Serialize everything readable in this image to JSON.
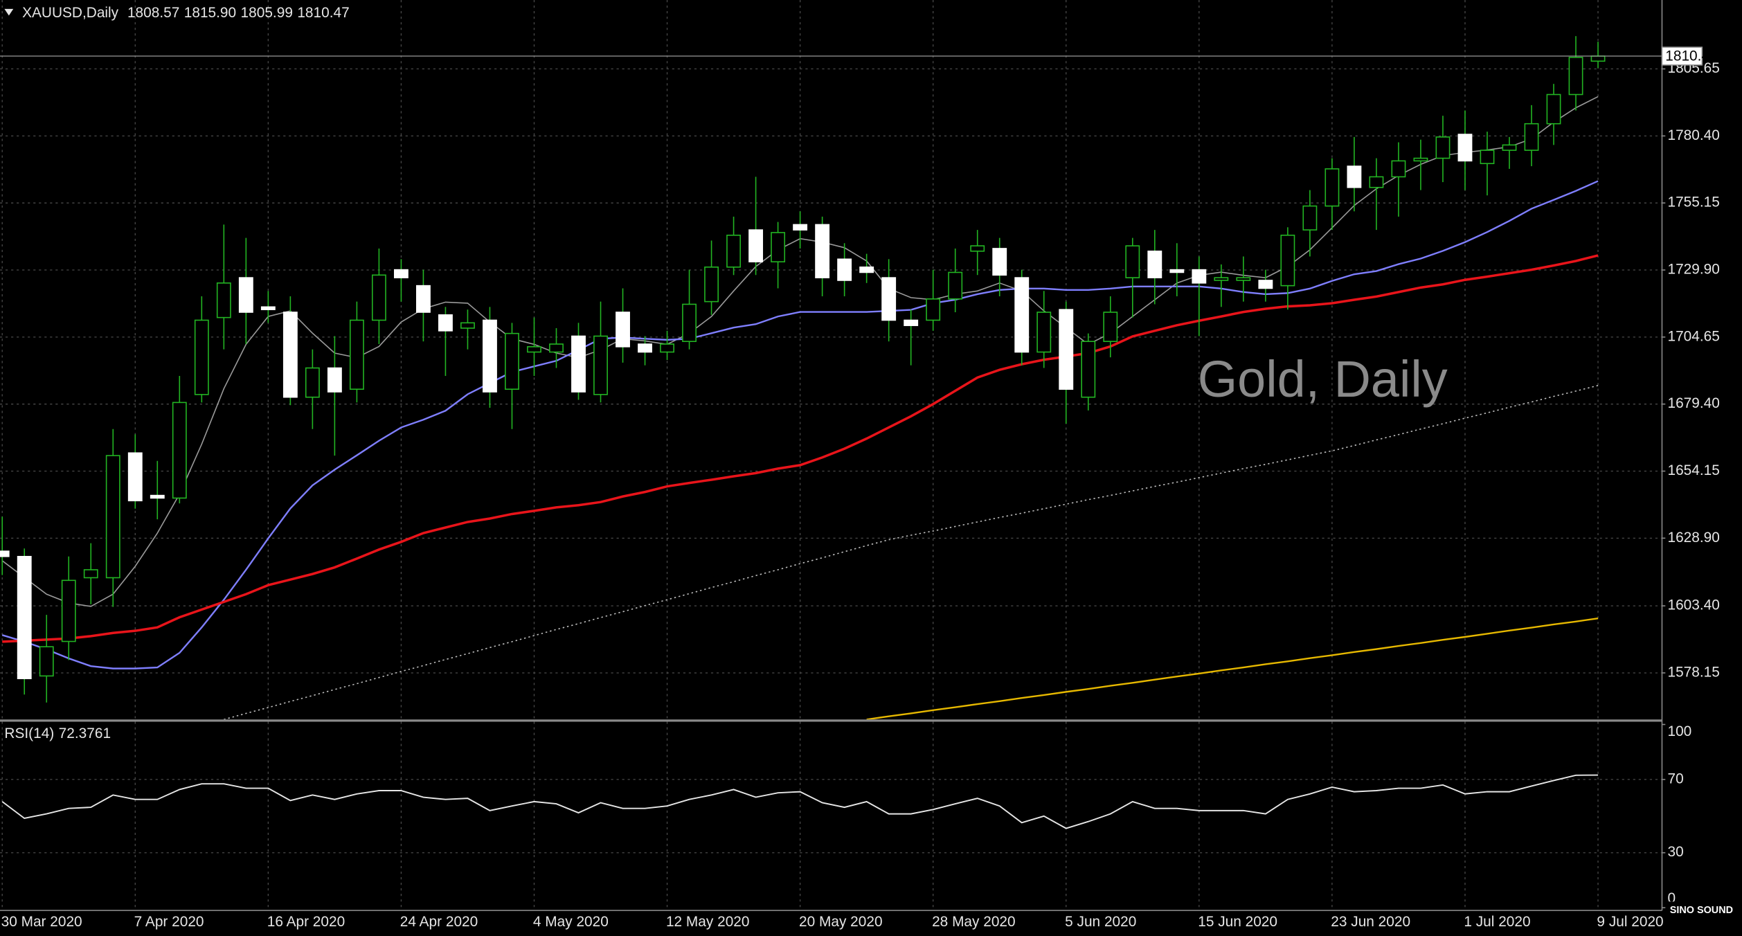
{
  "chart_data": [
    {
      "type": "candlestick",
      "title": "XAUUSD,Daily",
      "watermark": "Gold, Daily",
      "high_label": "1815.90",
      "logo": "SINO SOUND",
      "categories": [
        "30 Mar 2020",
        null,
        null,
        null,
        null,
        null,
        "7 Apr 2020",
        null,
        null,
        null,
        null,
        null,
        "16 Apr 2020",
        null,
        null,
        null,
        null,
        null,
        "24 Apr 2020",
        null,
        null,
        null,
        null,
        null,
        "4 May 2020",
        null,
        null,
        null,
        null,
        null,
        "12 May 2020",
        null,
        null,
        null,
        null,
        null,
        "20 May 2020",
        null,
        null,
        null,
        null,
        null,
        "28 May 2020",
        null,
        null,
        null,
        null,
        null,
        "5 Jun 2020",
        null,
        null,
        null,
        null,
        null,
        "15 Jun 2020",
        null,
        null,
        null,
        null,
        null,
        "23 Jun 2020",
        null,
        null,
        null,
        null,
        null,
        "1 Jul 2020",
        null,
        null,
        null,
        null,
        null,
        "9 Jul 2020"
      ],
      "open": [
        1624,
        1622,
        1577,
        1590,
        1614,
        1614,
        1661,
        1645,
        1644,
        1683,
        1712,
        1727,
        1716,
        1714,
        1682,
        1693,
        1685,
        1711,
        1730,
        1724,
        1713,
        1708,
        1711,
        1685,
        1699,
        1699,
        1705,
        1683,
        1714,
        1702,
        1699,
        1703,
        1718,
        1731,
        1745,
        1733,
        1747,
        1747,
        1734,
        1731,
        1727,
        1711,
        1711,
        1719,
        1737,
        1738,
        1727,
        1699,
        1715,
        1682,
        1703,
        1727,
        1737,
        1730,
        1730,
        1726,
        1726,
        1726,
        1724,
        1745,
        1754,
        1769,
        1761,
        1765,
        1771,
        1772,
        1781,
        1770,
        1775,
        1775,
        1785,
        1796,
        1808.57
      ],
      "high": [
        1637,
        1625,
        1600,
        1622,
        1627,
        1670,
        1668,
        1658,
        1690,
        1720,
        1747,
        1742,
        1722,
        1720,
        1700,
        1705,
        1718,
        1738,
        1734,
        1730,
        1716,
        1715,
        1716,
        1710,
        1712,
        1708,
        1710,
        1718,
        1723,
        1705,
        1707,
        1730,
        1741,
        1750,
        1765,
        1748,
        1752,
        1750,
        1740,
        1736,
        1734,
        1715,
        1730,
        1738,
        1745,
        1742,
        1730,
        1722,
        1718,
        1706,
        1720,
        1742,
        1745,
        1740,
        1735,
        1732,
        1735,
        1730,
        1746,
        1760,
        1772,
        1780,
        1772,
        1778,
        1779,
        1788,
        1790,
        1782,
        1780,
        1792,
        1800,
        1818,
        1815.9
      ],
      "low": [
        1615,
        1570,
        1567,
        1583,
        1604,
        1603,
        1640,
        1636,
        1642,
        1680,
        1700,
        1702,
        1710,
        1679,
        1670,
        1660,
        1680,
        1702,
        1718,
        1703,
        1690,
        1700,
        1678,
        1670,
        1690,
        1693,
        1681,
        1680,
        1695,
        1694,
        1696,
        1700,
        1713,
        1728,
        1728,
        1723,
        1738,
        1720,
        1720,
        1725,
        1703,
        1694,
        1707,
        1714,
        1728,
        1720,
        1694,
        1693,
        1672,
        1677,
        1697,
        1712,
        1717,
        1720,
        1705,
        1716,
        1718,
        1718,
        1715,
        1735,
        1745,
        1752,
        1745,
        1750,
        1760,
        1763,
        1760,
        1758,
        1768,
        1769,
        1777,
        1790,
        1805.99
      ],
      "close": [
        1622,
        1576,
        1588,
        1613,
        1617,
        1660,
        1643,
        1644,
        1680,
        1711,
        1725,
        1714,
        1715,
        1682,
        1693,
        1684,
        1711,
        1728,
        1727,
        1714,
        1707,
        1710,
        1684,
        1706,
        1701,
        1702,
        1684,
        1705,
        1701,
        1699,
        1702,
        1717,
        1731,
        1743,
        1733,
        1744,
        1745,
        1727,
        1726,
        1729,
        1711,
        1709,
        1719,
        1729,
        1739,
        1728,
        1699,
        1714,
        1685,
        1703,
        1714,
        1739,
        1727,
        1729,
        1725,
        1727,
        1727,
        1723,
        1743,
        1754,
        1768,
        1761,
        1765,
        1771,
        1772,
        1780,
        1771,
        1775,
        1777,
        1785,
        1796,
        1810,
        1810.47
      ],
      "wick_color": "#22b422",
      "up_fill": "#000000",
      "up_stroke": "#22b422",
      "down_fill": "#ffffff",
      "down_stroke": "#ffffff",
      "overlays": [
        {
          "color": "#9a9a9a",
          "style": "solid",
          "line_width": 1,
          "values": [
            1620.4,
            1614.1,
            1607.8,
            1604.5,
            1603.2,
            1607.8,
            1618.3,
            1630.8,
            1645.5,
            1664.3,
            1685.2,
            1701.9,
            1712.4,
            1714.5,
            1706.1,
            1698.6,
            1696.9,
            1701.1,
            1710.3,
            1715.3,
            1717.8,
            1717.4,
            1710.3,
            1704.0,
            1701.9,
            1698.6,
            1696.9,
            1699.8,
            1704.0,
            1703.2,
            1701.9,
            1706.1,
            1712.4,
            1722.0,
            1731.2,
            1737.5,
            1741.7,
            1740.4,
            1738.3,
            1733.3,
            1722.9,
            1719.5,
            1718.7,
            1720.8,
            1722.0,
            1725.0,
            1722.0,
            1714.5,
            1708.2,
            1701.9,
            1706.1,
            1712.4,
            1718.7,
            1725.0,
            1727.9,
            1729.1,
            1727.9,
            1727.0,
            1731.2,
            1737.5,
            1745.8,
            1754.2,
            1760.5,
            1765.5,
            1769.7,
            1773.0,
            1774.2,
            1775.1,
            1776.3,
            1779.3,
            1785.6,
            1791.0,
            1795.2
          ]
        },
        {
          "color": "#7f7fff",
          "style": "solid",
          "line_width": 1.5,
          "values": [
            1592.4,
            1589.9,
            1587.0,
            1583.6,
            1580.7,
            1579.8,
            1579.8,
            1580.2,
            1585.7,
            1595.3,
            1605.7,
            1617.0,
            1628.8,
            1640.1,
            1648.8,
            1654.7,
            1660.1,
            1665.6,
            1670.6,
            1673.5,
            1676.9,
            1683.1,
            1687.3,
            1691.5,
            1693.6,
            1695.7,
            1699.8,
            1704.0,
            1704.5,
            1704.0,
            1703.6,
            1704.0,
            1706.1,
            1708.2,
            1709.5,
            1712.4,
            1714.1,
            1714.1,
            1714.1,
            1714.1,
            1714.5,
            1714.9,
            1717.4,
            1718.7,
            1720.8,
            1722.4,
            1722.9,
            1722.9,
            1722.4,
            1722.4,
            1722.9,
            1723.7,
            1723.7,
            1723.7,
            1723.7,
            1722.9,
            1721.6,
            1720.8,
            1721.2,
            1722.9,
            1725.8,
            1728.3,
            1729.5,
            1732.1,
            1734.2,
            1737.1,
            1740.4,
            1744.2,
            1748.4,
            1753.0,
            1756.3,
            1759.7,
            1763.4
          ]
        },
        {
          "color": "#e8141a",
          "style": "solid",
          "line_width": 2.2,
          "values": [
            1589.9,
            1590.3,
            1590.7,
            1591.1,
            1592.0,
            1593.2,
            1594.0,
            1595.3,
            1599.1,
            1602.0,
            1604.9,
            1607.8,
            1611.2,
            1613.3,
            1615.4,
            1617.9,
            1621.2,
            1624.6,
            1627.5,
            1630.8,
            1632.9,
            1635.0,
            1636.3,
            1638.0,
            1639.2,
            1640.5,
            1641.3,
            1642.5,
            1644.6,
            1646.3,
            1648.4,
            1649.7,
            1650.9,
            1652.2,
            1653.4,
            1655.1,
            1656.4,
            1659.3,
            1662.6,
            1666.4,
            1670.6,
            1674.8,
            1679.4,
            1684.4,
            1689.4,
            1692.3,
            1694.4,
            1696.1,
            1697.3,
            1698.6,
            1701.1,
            1704.9,
            1707.0,
            1709.1,
            1710.8,
            1712.4,
            1714.1,
            1715.3,
            1716.2,
            1716.6,
            1717.4,
            1718.7,
            1719.9,
            1721.6,
            1723.3,
            1724.5,
            1726.2,
            1727.4,
            1728.7,
            1730.0,
            1731.6,
            1733.3,
            1735.4
          ]
        },
        {
          "color": "#bdbdbd",
          "style": "dotted",
          "line_width": 1,
          "values": [
            null,
            null,
            null,
            null,
            null,
            null,
            null,
            null,
            null,
            null,
            1560.6,
            1562.9,
            1565.1,
            1567.4,
            1569.6,
            1571.9,
            1574.1,
            1576.4,
            1578.7,
            1580.9,
            1583.2,
            1585.4,
            1587.7,
            1589.9,
            1592.2,
            1594.5,
            1596.7,
            1599.0,
            1601.2,
            1603.5,
            1605.7,
            1608.0,
            1610.3,
            1612.5,
            1614.8,
            1617.0,
            1619.3,
            1621.5,
            1623.8,
            1626.1,
            1628.3,
            1630.0,
            1631.6,
            1633.3,
            1635.0,
            1636.7,
            1638.3,
            1640.0,
            1641.7,
            1643.4,
            1645.0,
            1646.7,
            1648.4,
            1650.0,
            1651.7,
            1653.4,
            1655.1,
            1656.7,
            1658.4,
            1660.1,
            1661.8,
            1663.8,
            1665.9,
            1667.9,
            1670.0,
            1672.0,
            1674.1,
            1676.1,
            1678.2,
            1680.2,
            1682.3,
            1684.3,
            1686.4
          ]
        },
        {
          "color": "#e6b800",
          "style": "solid",
          "line_width": 1.5,
          "values": [
            null,
            null,
            null,
            null,
            null,
            null,
            null,
            null,
            null,
            null,
            null,
            null,
            null,
            null,
            null,
            null,
            null,
            null,
            null,
            null,
            null,
            null,
            null,
            null,
            null,
            null,
            null,
            null,
            null,
            null,
            null,
            null,
            null,
            null,
            null,
            null,
            null,
            null,
            null,
            1560.6,
            1561.8,
            1562.9,
            1564.1,
            1565.2,
            1566.4,
            1567.5,
            1568.7,
            1569.8,
            1571.0,
            1572.1,
            1573.3,
            1574.4,
            1575.6,
            1576.8,
            1577.9,
            1579.1,
            1580.2,
            1581.4,
            1582.5,
            1583.7,
            1584.8,
            1586.0,
            1587.1,
            1588.3,
            1589.4,
            1590.6,
            1591.7,
            1592.9,
            1594.1,
            1595.2,
            1596.4,
            1597.5,
            1598.7
          ]
        }
      ],
      "ylim": [
        1560.6,
        1831.6
      ],
      "yticks": [
        1805.65,
        {
          "value": 1780.4,
          "label": "1780.40"
        },
        1755.15,
        {
          "value": 1729.9,
          "label": "1729.90"
        },
        1704.65,
        {
          "value": 1679.4,
          "label": "1679.40"
        },
        1654.15,
        {
          "value": 1628.9,
          "label": "1628.90"
        },
        {
          "value": 1603.4,
          "label": "1603.40"
        },
        1578.15
      ],
      "grid": true
    },
    {
      "type": "line",
      "title": "RSI(14)",
      "color": "#e6e6e6",
      "values": [
        57.9,
        48.8,
        51.2,
        54.2,
        54.8,
        61.5,
        59.1,
        59.1,
        64.5,
        67.6,
        67.6,
        65.2,
        65.2,
        58.5,
        61.5,
        59.1,
        62.1,
        63.9,
        63.9,
        60.3,
        59.1,
        59.7,
        53.0,
        55.5,
        57.9,
        56.7,
        51.8,
        57.3,
        54.2,
        54.2,
        55.5,
        59.1,
        61.5,
        64.5,
        60.3,
        62.7,
        63.3,
        57.3,
        54.8,
        57.9,
        51.2,
        51.2,
        53.6,
        56.7,
        59.7,
        55.5,
        46.4,
        50.0,
        43.3,
        47.0,
        51.2,
        57.9,
        54.2,
        54.2,
        53.0,
        53.0,
        53.0,
        51.2,
        59.1,
        62.1,
        65.8,
        63.3,
        63.9,
        65.2,
        65.2,
        67.0,
        62.1,
        63.3,
        63.3,
        66.4,
        69.4,
        72.3,
        72.3761
      ],
      "ylim": [
        0,
        100
      ],
      "yticks": [
        100,
        70,
        30,
        0
      ],
      "grid": true
    }
  ]
}
